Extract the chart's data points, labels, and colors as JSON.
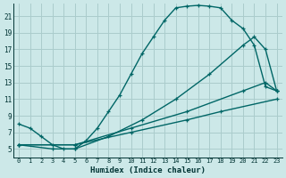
{
  "xlabel": "Humidex (Indice chaleur)",
  "bg_color": "#cce8e8",
  "grid_color": "#aacccc",
  "line_color": "#006666",
  "xlim": [
    -0.5,
    23.5
  ],
  "ylim": [
    4.0,
    22.5
  ],
  "xticks": [
    0,
    1,
    2,
    3,
    4,
    5,
    6,
    7,
    8,
    9,
    10,
    11,
    12,
    13,
    14,
    15,
    16,
    17,
    18,
    19,
    20,
    21,
    22,
    23
  ],
  "yticks": [
    5,
    7,
    9,
    11,
    13,
    15,
    17,
    19,
    21
  ],
  "curve1_x": [
    0,
    1,
    2,
    3,
    4,
    5,
    6,
    7,
    8,
    9,
    10,
    11,
    12,
    13,
    14,
    15,
    16,
    17,
    18,
    19,
    20,
    21,
    22,
    23
  ],
  "curve1_y": [
    8.0,
    7.5,
    6.5,
    5.5,
    5.0,
    5.0,
    6.0,
    7.5,
    9.5,
    11.5,
    14.0,
    16.5,
    18.5,
    20.5,
    22.0,
    22.2,
    22.3,
    22.2,
    22.0,
    20.5,
    19.5,
    17.5,
    12.5,
    12.0
  ],
  "curve2_x": [
    0,
    3,
    5,
    8,
    11,
    14,
    17,
    20,
    21,
    22,
    23
  ],
  "curve2_y": [
    5.5,
    5.0,
    5.0,
    6.5,
    8.5,
    11.0,
    14.0,
    17.5,
    18.5,
    17.0,
    12.0
  ],
  "curve3_x": [
    0,
    5,
    10,
    15,
    20,
    22,
    23
  ],
  "curve3_y": [
    5.5,
    5.5,
    7.5,
    9.5,
    12.0,
    13.0,
    12.0
  ],
  "curve4_x": [
    0,
    5,
    10,
    15,
    18,
    23
  ],
  "curve4_y": [
    5.5,
    5.5,
    7.0,
    8.5,
    9.5,
    11.0
  ]
}
